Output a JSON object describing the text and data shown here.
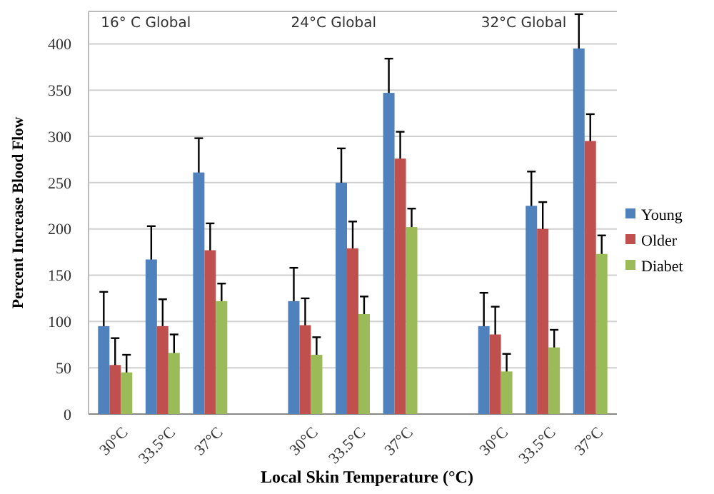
{
  "chart_data": {
    "type": "bar",
    "xlabel": "Local Skin Temperature (°C)",
    "ylabel": "Percent Increase Blood Flow",
    "categories": [
      "30°C",
      "33.5°C",
      "37°C",
      null,
      "30°C",
      "33.5°C",
      "37°C",
      null,
      "30°C",
      "33.5°C",
      "37°C"
    ],
    "series": [
      {
        "name": "Young",
        "color": "#4f81bd",
        "values": [
          95,
          167,
          261,
          null,
          122,
          250,
          347,
          null,
          95,
          225,
          395
        ],
        "errors": [
          37,
          36,
          37,
          null,
          36,
          37,
          37,
          null,
          36,
          37,
          37
        ]
      },
      {
        "name": "Older",
        "color": "#c0504d",
        "values": [
          53,
          95,
          177,
          null,
          96,
          179,
          276,
          null,
          86,
          200,
          295
        ],
        "errors": [
          29,
          29,
          29,
          null,
          29,
          29,
          29,
          null,
          30,
          29,
          29
        ]
      },
      {
        "name": "Diabet",
        "color": "#9bbb59",
        "values": [
          45,
          66,
          122,
          null,
          64,
          108,
          202,
          null,
          46,
          72,
          173
        ],
        "errors": [
          19,
          20,
          19,
          null,
          19,
          19,
          20,
          null,
          19,
          19,
          20
        ]
      }
    ],
    "ylim": [
      0,
      435
    ],
    "yticks": [
      0,
      50,
      100,
      150,
      200,
      250,
      300,
      350,
      400
    ],
    "grid": "y",
    "legend": "right",
    "annotations": [
      "16° C Global",
      "24°C Global",
      "32°C Global"
    ]
  }
}
